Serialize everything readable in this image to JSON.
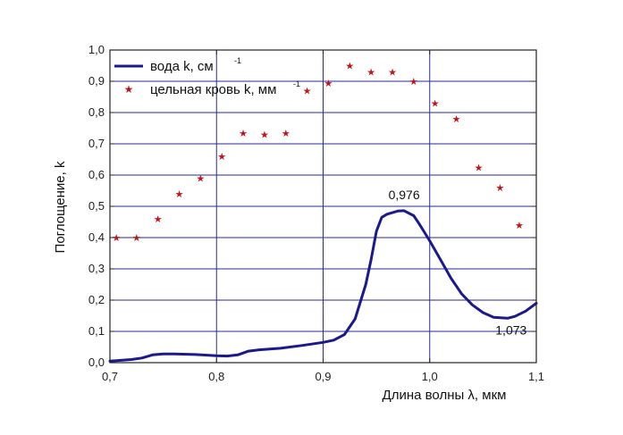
{
  "chart_data": {
    "type": "line",
    "title": "",
    "xlabel": "Длина волны λ, мкм",
    "ylabel": "Поглощение, k",
    "xlim": [
      0.7,
      1.1
    ],
    "ylim": [
      0.0,
      1.0
    ],
    "grid": true,
    "legend_position": "top-left",
    "x_ticks": [
      "0,7",
      "0,8",
      "0,9",
      "1,0",
      "1,1"
    ],
    "x_tick_values": [
      0.7,
      0.8,
      0.9,
      1.0,
      1.1
    ],
    "y_ticks": [
      "0,0",
      "0,1",
      "0,2",
      "0,3",
      "0,4",
      "0,5",
      "0,6",
      "0,7",
      "0,8",
      "0,9",
      "1,0"
    ],
    "y_tick_values": [
      0.0,
      0.1,
      0.2,
      0.3,
      0.4,
      0.5,
      0.6,
      0.7,
      0.8,
      0.9,
      1.0
    ],
    "series": [
      {
        "name": "вода k, см",
        "name_sup": "-1",
        "kind": "line",
        "color": "#1a1a8c",
        "x": [
          0.7,
          0.72,
          0.73,
          0.74,
          0.75,
          0.76,
          0.78,
          0.8,
          0.81,
          0.82,
          0.83,
          0.84,
          0.86,
          0.88,
          0.9,
          0.91,
          0.92,
          0.93,
          0.94,
          0.945,
          0.95,
          0.955,
          0.96,
          0.97,
          0.976,
          0.985,
          0.99,
          1.0,
          1.01,
          1.02,
          1.03,
          1.04,
          1.05,
          1.06,
          1.073,
          1.08,
          1.09,
          1.1
        ],
        "y": [
          0.005,
          0.01,
          0.015,
          0.025,
          0.028,
          0.028,
          0.026,
          0.022,
          0.021,
          0.025,
          0.037,
          0.041,
          0.046,
          0.055,
          0.065,
          0.072,
          0.09,
          0.14,
          0.25,
          0.33,
          0.42,
          0.465,
          0.475,
          0.485,
          0.486,
          0.47,
          0.445,
          0.39,
          0.33,
          0.27,
          0.22,
          0.185,
          0.16,
          0.145,
          0.142,
          0.148,
          0.165,
          0.19
        ]
      },
      {
        "name": "цельная кровь k, мм",
        "name_sup": "-1",
        "kind": "scatter",
        "marker": "star",
        "color": "#c0141c",
        "x": [
          0.706,
          0.725,
          0.745,
          0.765,
          0.785,
          0.805,
          0.825,
          0.845,
          0.865,
          0.885,
          0.905,
          0.925,
          0.945,
          0.965,
          0.985,
          1.005,
          1.025,
          1.046,
          1.066,
          1.084
        ],
        "y": [
          0.4,
          0.4,
          0.46,
          0.54,
          0.59,
          0.66,
          0.735,
          0.73,
          0.735,
          0.87,
          0.895,
          0.95,
          0.93,
          0.93,
          0.9,
          0.83,
          0.78,
          0.625,
          0.56,
          0.44
        ]
      }
    ],
    "annotations": [
      {
        "text": "0,976",
        "x": 0.976,
        "y": 0.486,
        "placement": "above"
      },
      {
        "text": "1,073",
        "x": 1.073,
        "y": 0.142,
        "placement": "below"
      }
    ]
  }
}
